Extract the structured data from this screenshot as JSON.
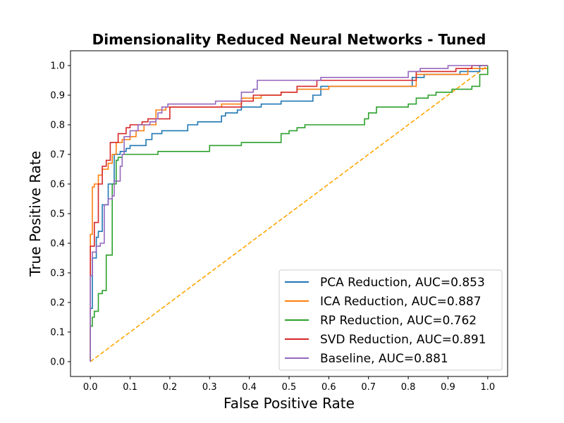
{
  "chart_data": {
    "type": "line",
    "title": "Dimensionality Reduced Neural Networks - Tuned",
    "xlabel": "False Positive Rate",
    "ylabel": "True Positive Rate",
    "xlim": [
      -0.05,
      1.05
    ],
    "ylim": [
      -0.05,
      1.05
    ],
    "xticks": [
      0.0,
      0.1,
      0.2,
      0.3,
      0.4,
      0.5,
      0.6,
      0.7,
      0.8,
      0.9,
      1.0
    ],
    "yticks": [
      0.0,
      0.1,
      0.2,
      0.3,
      0.4,
      0.5,
      0.6,
      0.7,
      0.8,
      0.9,
      1.0
    ],
    "xtick_labels": [
      "0.0",
      "0.1",
      "0.2",
      "0.3",
      "0.4",
      "0.5",
      "0.6",
      "0.7",
      "0.8",
      "0.9",
      "1.0"
    ],
    "ytick_labels": [
      "0.0",
      "0.1",
      "0.2",
      "0.3",
      "0.4",
      "0.5",
      "0.6",
      "0.7",
      "0.8",
      "0.9",
      "1.0"
    ],
    "grid": false,
    "legend_position": "lower-right",
    "series": [
      {
        "name": "PCA Reduction, AUC=0.853",
        "color": "#1f77b4",
        "x": [
          0.0,
          0.0,
          0.005,
          0.005,
          0.015,
          0.015,
          0.02,
          0.02,
          0.03,
          0.03,
          0.045,
          0.045,
          0.06,
          0.06,
          0.075,
          0.075,
          0.09,
          0.09,
          0.1,
          0.1,
          0.14,
          0.14,
          0.155,
          0.155,
          0.18,
          0.18,
          0.245,
          0.245,
          0.27,
          0.27,
          0.33,
          0.33,
          0.34,
          0.34,
          0.37,
          0.37,
          0.38,
          0.38,
          0.43,
          0.43,
          0.48,
          0.48,
          0.56,
          0.56,
          0.58,
          0.58,
          0.81,
          0.81,
          0.84,
          0.84,
          0.93,
          0.93,
          0.98,
          0.98,
          1.0
        ],
        "y": [
          0.0,
          0.18,
          0.18,
          0.35,
          0.35,
          0.42,
          0.42,
          0.44,
          0.44,
          0.53,
          0.53,
          0.6,
          0.6,
          0.7,
          0.7,
          0.71,
          0.71,
          0.72,
          0.72,
          0.73,
          0.73,
          0.75,
          0.75,
          0.77,
          0.77,
          0.78,
          0.78,
          0.8,
          0.8,
          0.81,
          0.81,
          0.83,
          0.83,
          0.84,
          0.84,
          0.85,
          0.85,
          0.86,
          0.86,
          0.87,
          0.87,
          0.88,
          0.88,
          0.9,
          0.9,
          0.93,
          0.93,
          0.96,
          0.96,
          0.97,
          0.97,
          0.98,
          0.98,
          1.0,
          1.0
        ]
      },
      {
        "name": "ICA Reduction, AUC=0.887",
        "color": "#ff7f0e",
        "x": [
          0.0,
          0.0,
          0.005,
          0.005,
          0.01,
          0.01,
          0.02,
          0.02,
          0.03,
          0.03,
          0.045,
          0.045,
          0.055,
          0.055,
          0.065,
          0.065,
          0.08,
          0.08,
          0.1,
          0.1,
          0.115,
          0.115,
          0.135,
          0.135,
          0.165,
          0.165,
          0.19,
          0.19,
          0.33,
          0.33,
          0.38,
          0.38,
          0.43,
          0.43,
          0.48,
          0.48,
          0.52,
          0.52,
          0.6,
          0.6,
          0.82,
          0.82,
          0.95,
          0.95,
          1.0
        ],
        "y": [
          0.0,
          0.43,
          0.43,
          0.59,
          0.59,
          0.6,
          0.6,
          0.63,
          0.63,
          0.65,
          0.65,
          0.67,
          0.67,
          0.7,
          0.7,
          0.74,
          0.74,
          0.75,
          0.75,
          0.76,
          0.76,
          0.78,
          0.78,
          0.8,
          0.8,
          0.85,
          0.85,
          0.86,
          0.86,
          0.87,
          0.87,
          0.89,
          0.89,
          0.9,
          0.9,
          0.91,
          0.91,
          0.92,
          0.92,
          0.93,
          0.93,
          0.97,
          0.97,
          0.99,
          0.99
        ]
      },
      {
        "name": "RP Reduction, AUC=0.762",
        "color": "#2ca02c",
        "x": [
          0.0,
          0.0,
          0.005,
          0.005,
          0.01,
          0.01,
          0.02,
          0.02,
          0.03,
          0.03,
          0.04,
          0.04,
          0.055,
          0.055,
          0.065,
          0.065,
          0.07,
          0.07,
          0.08,
          0.08,
          0.17,
          0.17,
          0.3,
          0.3,
          0.38,
          0.38,
          0.48,
          0.48,
          0.5,
          0.5,
          0.52,
          0.52,
          0.54,
          0.54,
          0.69,
          0.69,
          0.7,
          0.7,
          0.72,
          0.72,
          0.8,
          0.8,
          0.82,
          0.82,
          0.85,
          0.85,
          0.87,
          0.87,
          0.91,
          0.91,
          0.96,
          0.96,
          0.98,
          0.98,
          1.0,
          1.0
        ],
        "y": [
          0.0,
          0.12,
          0.12,
          0.15,
          0.15,
          0.17,
          0.17,
          0.23,
          0.23,
          0.24,
          0.24,
          0.36,
          0.36,
          0.6,
          0.6,
          0.68,
          0.68,
          0.69,
          0.69,
          0.7,
          0.7,
          0.71,
          0.71,
          0.73,
          0.73,
          0.74,
          0.74,
          0.77,
          0.77,
          0.78,
          0.78,
          0.79,
          0.79,
          0.8,
          0.8,
          0.82,
          0.82,
          0.84,
          0.84,
          0.86,
          0.86,
          0.87,
          0.87,
          0.89,
          0.89,
          0.9,
          0.9,
          0.91,
          0.91,
          0.92,
          0.92,
          0.93,
          0.93,
          0.97,
          0.97,
          1.0
        ]
      },
      {
        "name": "SVD Reduction, AUC=0.891",
        "color": "#d62728",
        "x": [
          0.0,
          0.0,
          0.01,
          0.01,
          0.02,
          0.02,
          0.03,
          0.03,
          0.04,
          0.04,
          0.05,
          0.05,
          0.07,
          0.07,
          0.09,
          0.09,
          0.1,
          0.1,
          0.13,
          0.13,
          0.145,
          0.145,
          0.2,
          0.2,
          0.38,
          0.38,
          0.41,
          0.41,
          0.48,
          0.48,
          0.52,
          0.52,
          0.57,
          0.57,
          0.82,
          0.82,
          0.92,
          0.92,
          0.96,
          0.96,
          1.0
        ],
        "y": [
          0.0,
          0.39,
          0.39,
          0.47,
          0.47,
          0.6,
          0.6,
          0.66,
          0.66,
          0.68,
          0.68,
          0.74,
          0.74,
          0.77,
          0.77,
          0.79,
          0.79,
          0.8,
          0.8,
          0.81,
          0.81,
          0.82,
          0.82,
          0.86,
          0.86,
          0.88,
          0.88,
          0.9,
          0.9,
          0.91,
          0.91,
          0.93,
          0.93,
          0.95,
          0.95,
          0.98,
          0.98,
          0.99,
          0.99,
          1.0,
          1.0
        ]
      },
      {
        "name": "Baseline, AUC=0.881",
        "color": "#9467bd",
        "x": [
          0.0,
          0.0,
          0.005,
          0.005,
          0.015,
          0.015,
          0.025,
          0.025,
          0.035,
          0.035,
          0.045,
          0.045,
          0.055,
          0.055,
          0.06,
          0.06,
          0.075,
          0.075,
          0.08,
          0.08,
          0.085,
          0.085,
          0.1,
          0.1,
          0.12,
          0.12,
          0.15,
          0.15,
          0.165,
          0.165,
          0.17,
          0.17,
          0.18,
          0.18,
          0.195,
          0.195,
          0.315,
          0.315,
          0.38,
          0.38,
          0.41,
          0.41,
          0.42,
          0.42,
          0.58,
          0.58,
          0.8,
          0.8,
          0.83,
          0.83,
          0.9,
          0.9,
          0.95,
          0.95,
          1.0
        ],
        "y": [
          0.0,
          0.29,
          0.29,
          0.37,
          0.37,
          0.39,
          0.39,
          0.4,
          0.4,
          0.53,
          0.53,
          0.55,
          0.55,
          0.56,
          0.56,
          0.61,
          0.61,
          0.66,
          0.66,
          0.7,
          0.7,
          0.76,
          0.76,
          0.78,
          0.78,
          0.8,
          0.8,
          0.81,
          0.81,
          0.82,
          0.82,
          0.84,
          0.84,
          0.86,
          0.86,
          0.87,
          0.87,
          0.88,
          0.88,
          0.91,
          0.91,
          0.92,
          0.92,
          0.95,
          0.95,
          0.96,
          0.96,
          0.98,
          0.98,
          0.99,
          0.99,
          1.0,
          1.0,
          1.0,
          1.0
        ]
      }
    ],
    "reference_line": {
      "color": "#ffa500",
      "style": "dashed",
      "x": [
        0.0,
        1.0
      ],
      "y": [
        0.0,
        1.0
      ]
    }
  }
}
